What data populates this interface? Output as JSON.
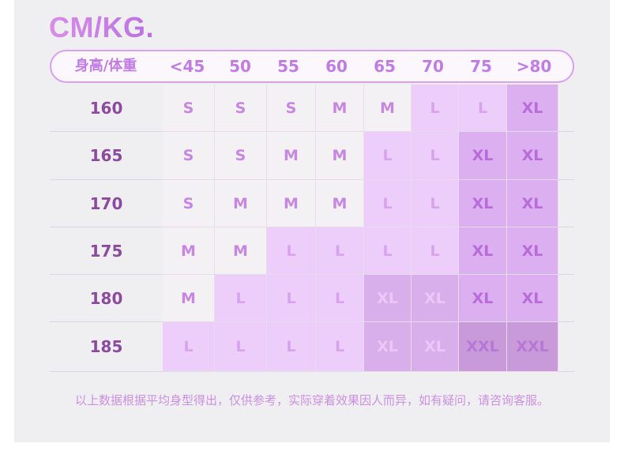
{
  "header": {
    "title": "CM/KG.",
    "columns": [
      "身高/体重",
      "<45",
      "50",
      "55",
      "60",
      "65",
      "70",
      "75",
      ">80"
    ]
  },
  "table": {
    "rows": [
      {
        "label": "160",
        "cells": [
          "S",
          "S",
          "S",
          "M",
          "M",
          "L",
          "L",
          "XL"
        ]
      },
      {
        "label": "165",
        "cells": [
          "S",
          "S",
          "M",
          "M",
          "L",
          "L",
          "XL",
          "XL"
        ]
      },
      {
        "label": "170",
        "cells": [
          "S",
          "M",
          "M",
          "M",
          "L",
          "L",
          "XL",
          "XL"
        ]
      },
      {
        "label": "175",
        "cells": [
          "M",
          "M",
          "L",
          "L",
          "L",
          "L",
          "XL",
          "XL"
        ]
      },
      {
        "label": "180",
        "cells": [
          "M",
          "L",
          "L",
          "L",
          "XL",
          "XL",
          "XL",
          "XL"
        ]
      },
      {
        "label": "185",
        "cells": [
          "L",
          "L",
          "L",
          "L",
          "XL",
          "XL",
          "XXL",
          "XXL"
        ]
      }
    ]
  },
  "footer": {
    "note": "以上数据根据平均身型得出，仅供参考，实际穿着效果因人而异，如有疑问，请咨询客服。"
  }
}
